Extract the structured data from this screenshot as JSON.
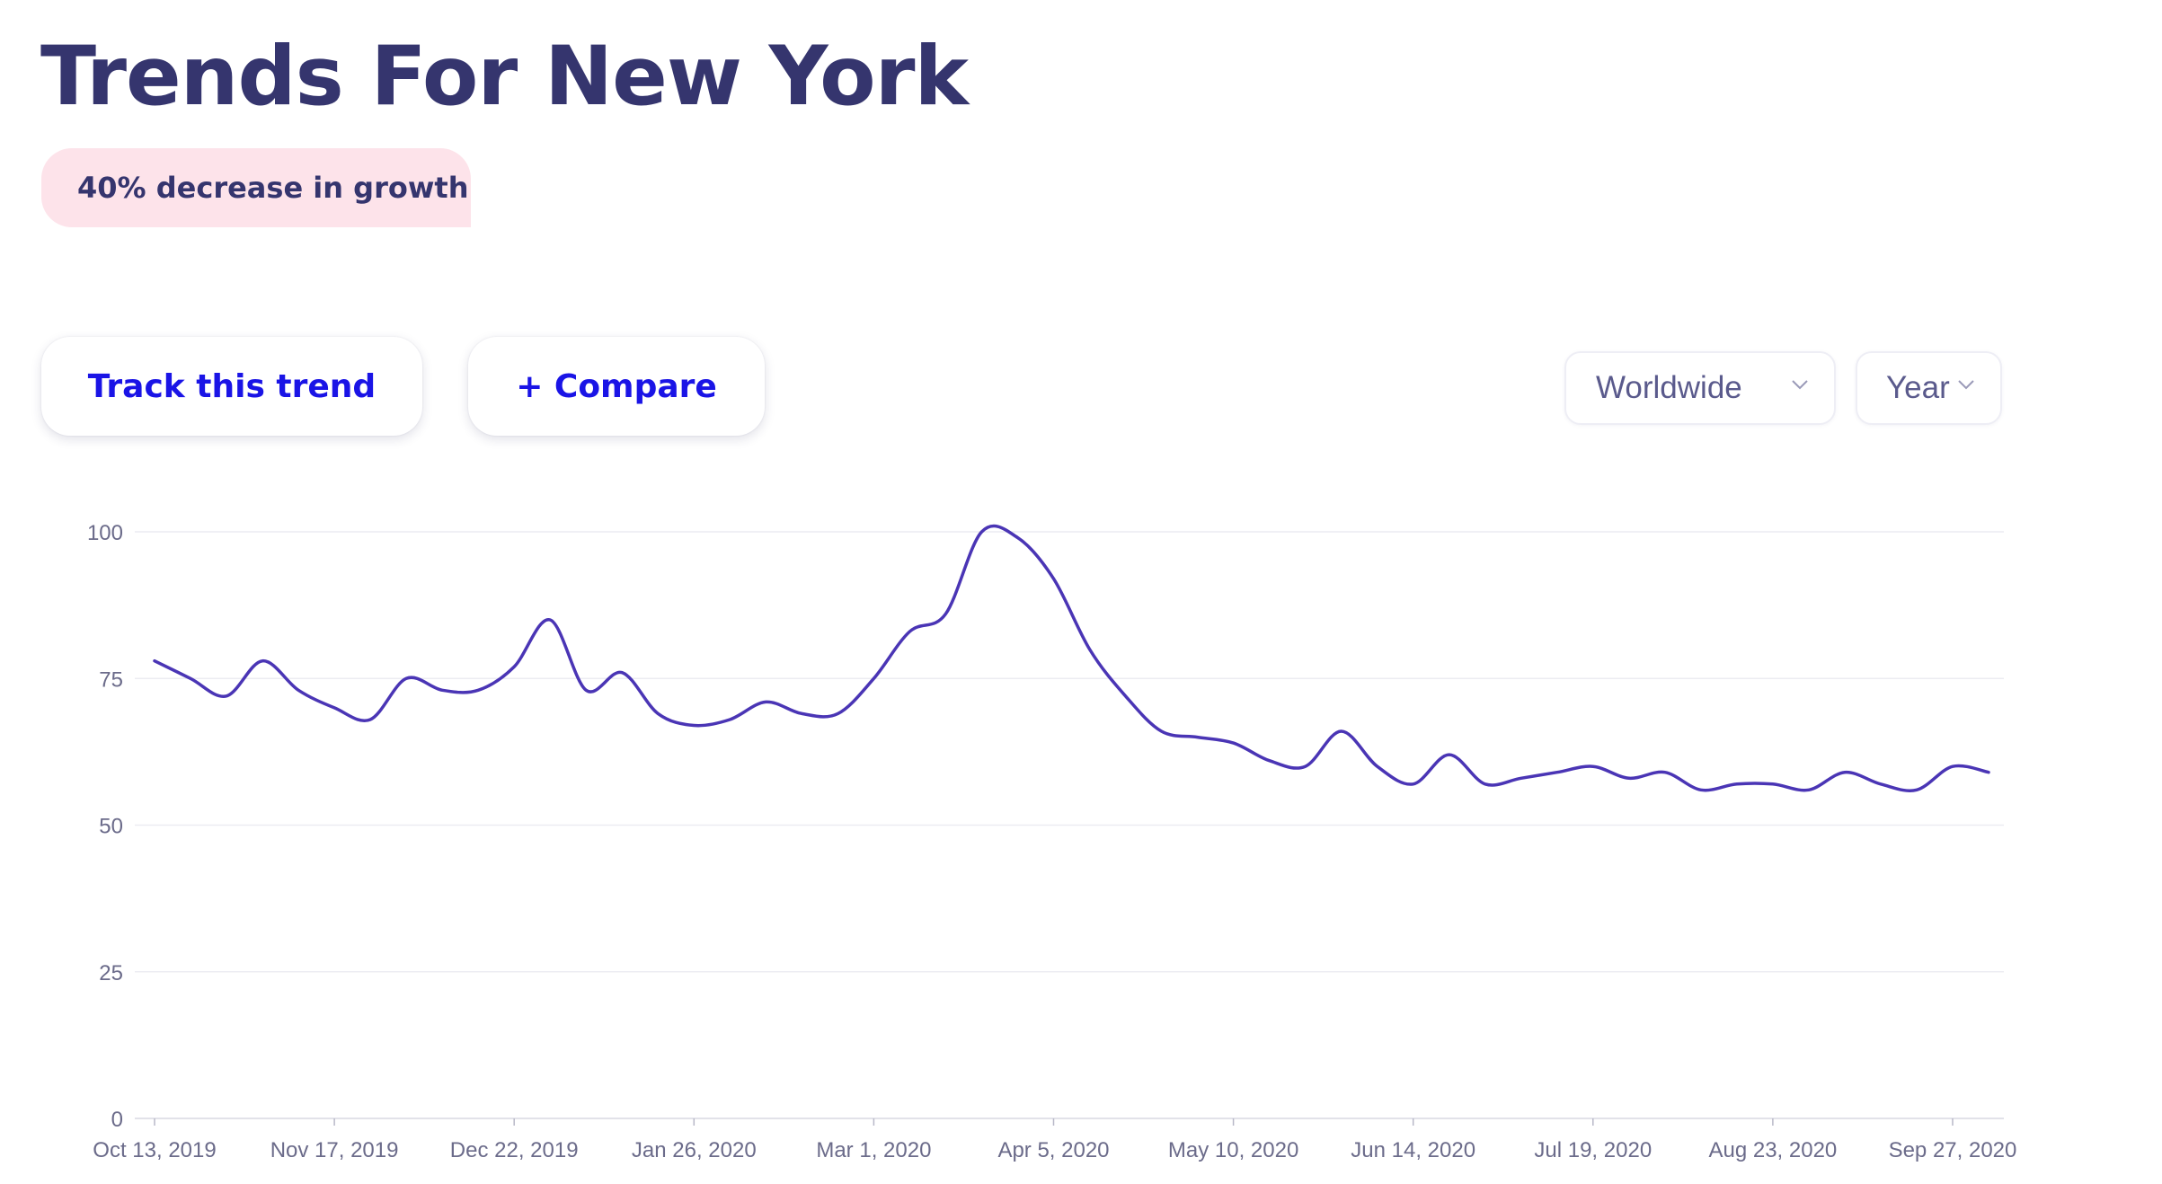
{
  "header": {
    "title": "Trends For New York",
    "badge": "40% decrease in growth"
  },
  "actions": {
    "track_label": "Track this trend",
    "compare_label": "+ Compare"
  },
  "filters": {
    "region": "Worldwide",
    "period": "Year"
  },
  "colors": {
    "title": "#35356e",
    "badge_bg": "#fde3ea",
    "button_text": "#1a14e6",
    "line": "#4a35b5",
    "axis_text": "#6b6b8a",
    "grid": "#ececf2"
  },
  "chart_data": {
    "type": "line",
    "title": "",
    "xlabel": "",
    "ylabel": "",
    "ylim": [
      0,
      100
    ],
    "yticks": [
      0,
      25,
      50,
      75,
      100
    ],
    "xtick_labels": [
      "Oct 13, 2019",
      "Nov 17, 2019",
      "Dec 22, 2019",
      "Jan 26, 2020",
      "Mar 1, 2020",
      "Apr 5, 2020",
      "May 10, 2020",
      "Jun 14, 2020",
      "Jul 19, 2020",
      "Aug 23, 2020",
      "Sep 27, 2020"
    ],
    "grid": true,
    "x": [
      "2019-10-13",
      "2019-10-20",
      "2019-10-27",
      "2019-11-03",
      "2019-11-10",
      "2019-11-17",
      "2019-11-24",
      "2019-12-01",
      "2019-12-08",
      "2019-12-15",
      "2019-12-22",
      "2019-12-29",
      "2020-01-05",
      "2020-01-12",
      "2020-01-19",
      "2020-01-26",
      "2020-02-02",
      "2020-02-09",
      "2020-02-16",
      "2020-02-23",
      "2020-03-01",
      "2020-03-08",
      "2020-03-15",
      "2020-03-22",
      "2020-03-29",
      "2020-04-05",
      "2020-04-12",
      "2020-04-19",
      "2020-04-26",
      "2020-05-03",
      "2020-05-10",
      "2020-05-17",
      "2020-05-24",
      "2020-05-31",
      "2020-06-07",
      "2020-06-14",
      "2020-06-21",
      "2020-06-28",
      "2020-07-05",
      "2020-07-12",
      "2020-07-19",
      "2020-07-26",
      "2020-08-02",
      "2020-08-09",
      "2020-08-16",
      "2020-08-23",
      "2020-08-30",
      "2020-09-06",
      "2020-09-13",
      "2020-09-20",
      "2020-09-27",
      "2020-10-04"
    ],
    "series": [
      {
        "values": [
          78,
          75,
          72,
          78,
          73,
          70,
          68,
          75,
          73,
          73,
          77,
          85,
          73,
          76,
          69,
          67,
          68,
          71,
          69,
          69,
          75,
          83,
          86,
          100,
          99,
          92,
          80,
          72,
          66,
          65,
          64,
          61,
          60,
          66,
          60,
          57,
          62,
          57,
          58,
          59,
          60,
          58,
          59,
          56,
          57,
          57,
          56,
          59,
          57,
          56,
          60,
          59
        ]
      }
    ]
  }
}
